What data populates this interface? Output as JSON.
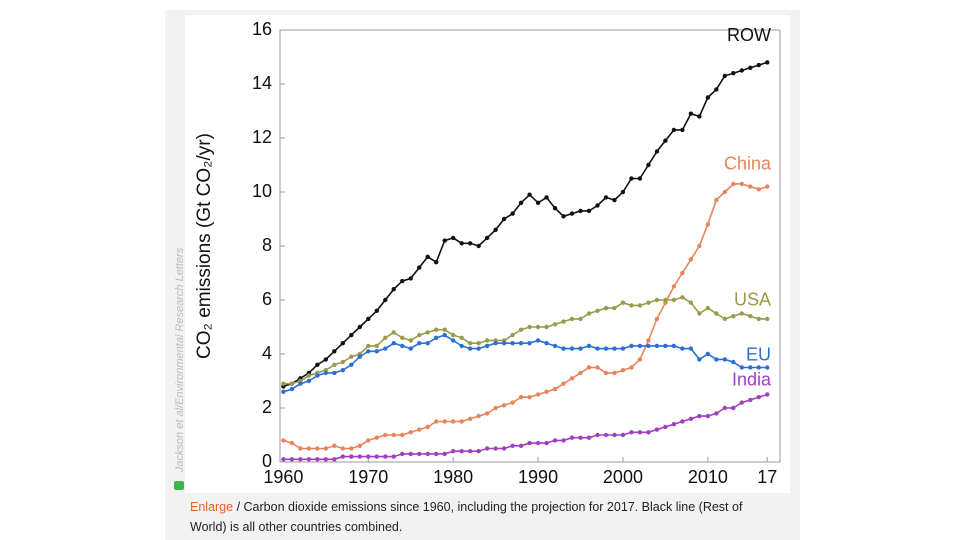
{
  "chart_data": {
    "type": "line",
    "ylabel": "CO₂ emissions (Gt CO₂/yr)",
    "credit": "Jackson et al/Environmental Research Letters",
    "x": [
      1960,
      1961,
      1962,
      1963,
      1964,
      1965,
      1966,
      1967,
      1968,
      1969,
      1970,
      1971,
      1972,
      1973,
      1974,
      1975,
      1976,
      1977,
      1978,
      1979,
      1980,
      1981,
      1982,
      1983,
      1984,
      1985,
      1986,
      1987,
      1988,
      1989,
      1990,
      1991,
      1992,
      1993,
      1994,
      1995,
      1996,
      1997,
      1998,
      1999,
      2000,
      2001,
      2002,
      2003,
      2004,
      2005,
      2006,
      2007,
      2008,
      2009,
      2010,
      2011,
      2012,
      2013,
      2014,
      2015,
      2016,
      2017
    ],
    "series": [
      {
        "name": "ROW",
        "color": "#111111",
        "values": [
          2.8,
          2.9,
          3.1,
          3.3,
          3.6,
          3.8,
          4.1,
          4.4,
          4.7,
          5.0,
          5.3,
          5.6,
          6.0,
          6.4,
          6.7,
          6.8,
          7.2,
          7.6,
          7.4,
          8.2,
          8.3,
          8.1,
          8.1,
          8.0,
          8.3,
          8.6,
          9.0,
          9.2,
          9.6,
          9.9,
          9.6,
          9.8,
          9.4,
          9.1,
          9.2,
          9.3,
          9.3,
          9.5,
          9.8,
          9.7,
          10.0,
          10.5,
          10.5,
          11.0,
          11.5,
          11.9,
          12.3,
          12.3,
          12.9,
          12.8,
          13.5,
          13.8,
          14.3,
          14.4,
          14.5,
          14.6,
          14.7,
          14.8
        ]
      },
      {
        "name": "China",
        "color": "#e8845a",
        "values": [
          0.8,
          0.7,
          0.5,
          0.5,
          0.5,
          0.5,
          0.6,
          0.5,
          0.5,
          0.6,
          0.8,
          0.9,
          1.0,
          1.0,
          1.0,
          1.1,
          1.2,
          1.3,
          1.5,
          1.5,
          1.5,
          1.5,
          1.6,
          1.7,
          1.8,
          2.0,
          2.1,
          2.2,
          2.4,
          2.4,
          2.5,
          2.6,
          2.7,
          2.9,
          3.1,
          3.3,
          3.5,
          3.5,
          3.3,
          3.3,
          3.4,
          3.5,
          3.8,
          4.5,
          5.3,
          5.9,
          6.5,
          7.0,
          7.5,
          8.0,
          8.8,
          9.7,
          10.0,
          10.3,
          10.3,
          10.2,
          10.1,
          10.2
        ]
      },
      {
        "name": "USA",
        "color": "#9b9a4a",
        "values": [
          2.9,
          2.9,
          3.0,
          3.2,
          3.3,
          3.4,
          3.6,
          3.7,
          3.9,
          4.0,
          4.3,
          4.3,
          4.6,
          4.8,
          4.6,
          4.5,
          4.7,
          4.8,
          4.9,
          4.9,
          4.7,
          4.6,
          4.4,
          4.4,
          4.5,
          4.5,
          4.5,
          4.7,
          4.9,
          5.0,
          5.0,
          5.0,
          5.1,
          5.2,
          5.3,
          5.3,
          5.5,
          5.6,
          5.7,
          5.7,
          5.9,
          5.8,
          5.8,
          5.9,
          6.0,
          6.0,
          6.0,
          6.1,
          5.9,
          5.5,
          5.7,
          5.5,
          5.3,
          5.4,
          5.5,
          5.4,
          5.3,
          5.3
        ]
      },
      {
        "name": "EU",
        "color": "#2a6fd6",
        "values": [
          2.6,
          2.7,
          2.9,
          3.0,
          3.2,
          3.3,
          3.3,
          3.4,
          3.6,
          3.9,
          4.1,
          4.1,
          4.2,
          4.4,
          4.3,
          4.2,
          4.4,
          4.4,
          4.6,
          4.7,
          4.5,
          4.3,
          4.2,
          4.2,
          4.3,
          4.4,
          4.4,
          4.4,
          4.4,
          4.4,
          4.5,
          4.4,
          4.3,
          4.2,
          4.2,
          4.2,
          4.3,
          4.2,
          4.2,
          4.2,
          4.2,
          4.3,
          4.3,
          4.3,
          4.3,
          4.3,
          4.3,
          4.2,
          4.2,
          3.8,
          4.0,
          3.8,
          3.8,
          3.7,
          3.5,
          3.5,
          3.5,
          3.5
        ]
      },
      {
        "name": "India",
        "color": "#a040c0",
        "values": [
          0.1,
          0.1,
          0.1,
          0.1,
          0.1,
          0.1,
          0.1,
          0.2,
          0.2,
          0.2,
          0.2,
          0.2,
          0.2,
          0.2,
          0.3,
          0.3,
          0.3,
          0.3,
          0.3,
          0.3,
          0.4,
          0.4,
          0.4,
          0.4,
          0.5,
          0.5,
          0.5,
          0.6,
          0.6,
          0.7,
          0.7,
          0.7,
          0.8,
          0.8,
          0.9,
          0.9,
          0.9,
          1.0,
          1.0,
          1.0,
          1.0,
          1.1,
          1.1,
          1.1,
          1.2,
          1.3,
          1.4,
          1.5,
          1.6,
          1.7,
          1.7,
          1.8,
          2.0,
          2.0,
          2.2,
          2.3,
          2.4,
          2.5
        ]
      }
    ],
    "xlim": [
      1959.6,
      2018.5
    ],
    "xticks": [
      1960,
      1970,
      1980,
      1990,
      2000,
      2010,
      {
        "value": 2017,
        "label": "17"
      }
    ],
    "ylim": [
      0,
      16
    ],
    "yticks": [
      0,
      2,
      4,
      6,
      8,
      10,
      12,
      14,
      16
    ]
  },
  "caption": {
    "link": "Enlarge",
    "text": "/ Carbon dioxide emissions since 1960, including the projection for 2017. Black line (Rest of World) is all other countries combined."
  }
}
